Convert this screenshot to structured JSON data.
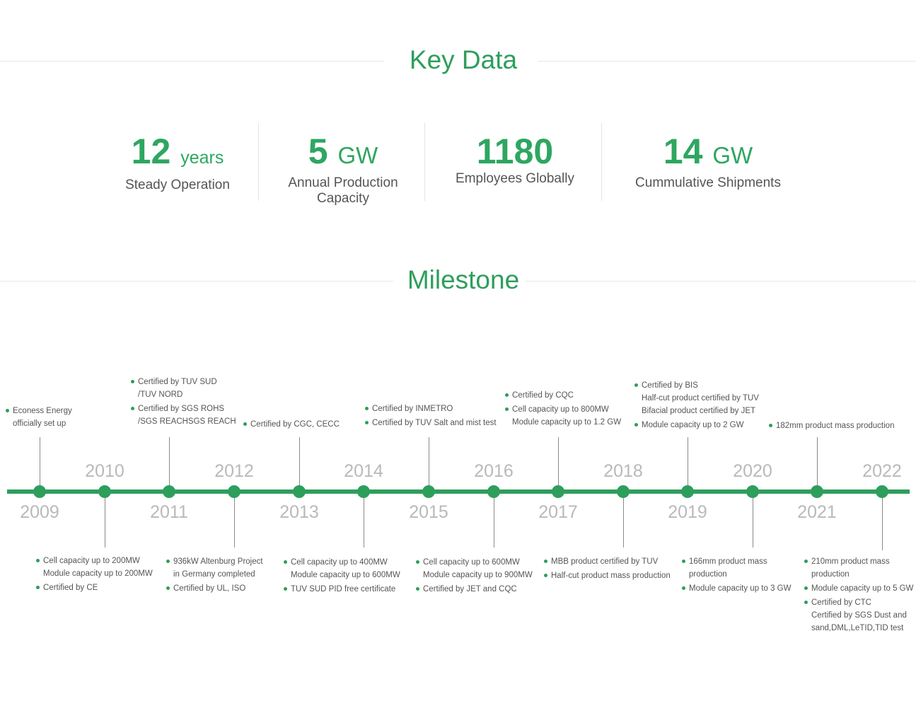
{
  "key_data": {
    "title": "Key Data",
    "stats": [
      {
        "value": "12",
        "unit": "years",
        "label": "Steady Operation"
      },
      {
        "value": "5",
        "unit": "GW",
        "label": "Annual Production Capacity"
      },
      {
        "value": "1180",
        "unit": "",
        "label": "Employees Globally"
      },
      {
        "value": "14",
        "unit": "GW",
        "label": "Cummulative Shipments"
      }
    ]
  },
  "milestone": {
    "title": "Milestone",
    "years": [
      "2009",
      "2010",
      "2011",
      "2012",
      "2013",
      "2014",
      "2015",
      "2016",
      "2017",
      "2018",
      "2019",
      "2020",
      "2021",
      "2022"
    ],
    "notes": {
      "2009": [
        "Econess Energy",
        "officially set up"
      ],
      "2010": [
        "Cell capacity up to 200MW",
        "Module capacity up to 200MW",
        "Certified by CE"
      ],
      "2011": [
        "Certified by TUV SUD",
        "/TUV NORD",
        "Certified by SGS ROHS",
        "/SGS REACHSGS REACH"
      ],
      "2012": [
        "936kW Altenburg Project",
        "in Germany completed",
        "Certified by UL, ISO"
      ],
      "2013": [
        "Certified by CGC, CECC"
      ],
      "2014": [
        "Cell capacity up to 400MW",
        "Module capacity up to 600MW",
        "TUV SUD PID free certificate"
      ],
      "2015": [
        "Certified by INMETRO",
        "Certified by TUV Salt and mist test"
      ],
      "2016": [
        "Cell capacity up to 600MW",
        "Module capacity up to 900MW",
        "Certified by JET and CQC"
      ],
      "2017": [
        "Certified by CQC",
        "Cell capacity up to 800MW",
        "Module capacity up to 1.2 GW"
      ],
      "2018": [
        "MBB product certified by TUV",
        "Half-cut product mass production"
      ],
      "2019": [
        "Certified by BIS",
        "Half-cut product certified by TUV",
        "Bifacial product certified by JET",
        "Module capacity up to 2 GW"
      ],
      "2020": [
        "166mm product mass",
        "production",
        "Module capacity up to 3 GW"
      ],
      "2021": [
        "182mm product mass production"
      ],
      "2022": [
        "210mm product mass",
        "production",
        "Module capacity up to 5 GW",
        "Certified by CTC",
        "Certified by SGS Dust and",
        "sand,DML,LeTID,TID test"
      ]
    }
  },
  "colors": {
    "accent": "#2e9e5c",
    "year_text": "#b9b9b9",
    "body_text": "#555555"
  }
}
